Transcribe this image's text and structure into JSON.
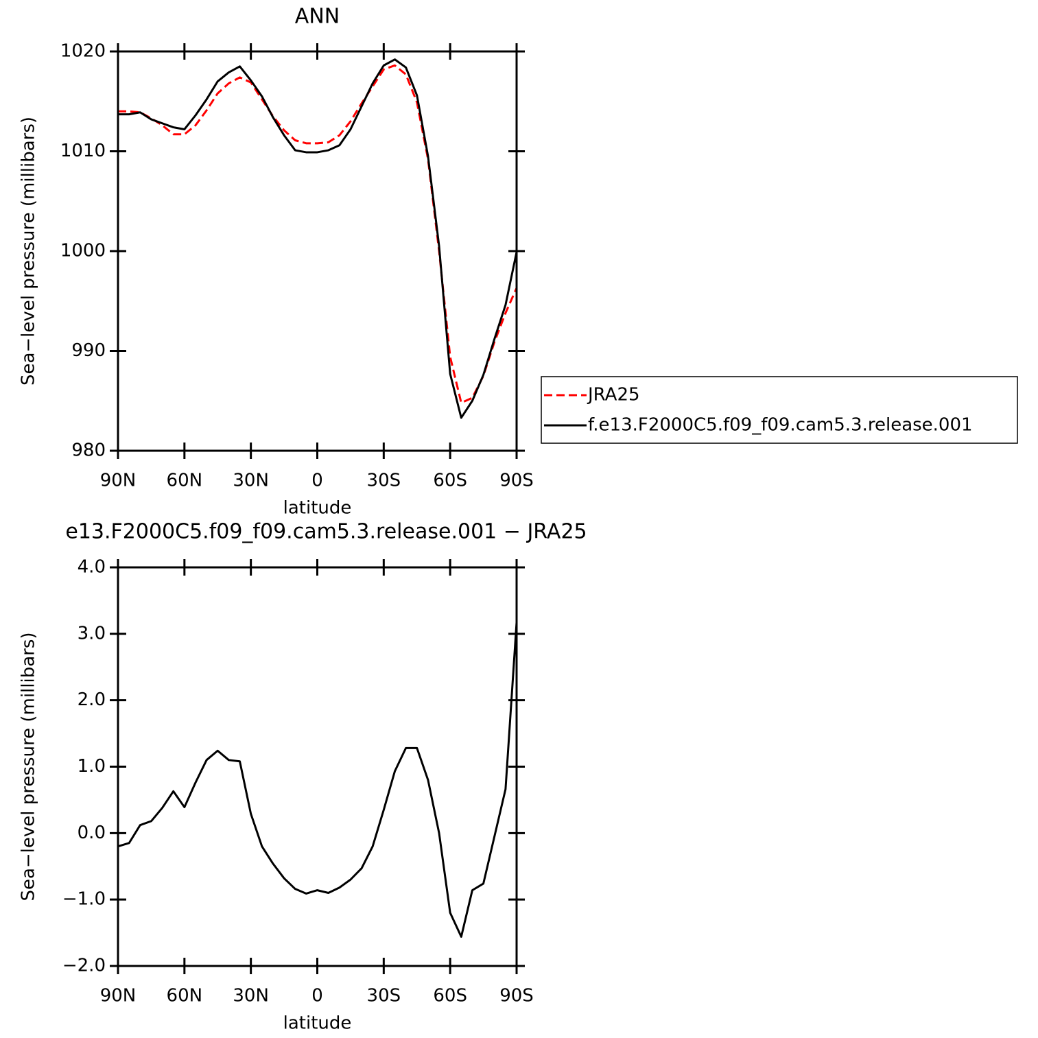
{
  "chart_data": [
    {
      "type": "line",
      "title": "ANN",
      "x_label": "latitude",
      "y_label": "Sea−level pressure (millibars)",
      "x": [
        90,
        85,
        80,
        75,
        70,
        65,
        60,
        55,
        50,
        45,
        40,
        35,
        30,
        25,
        20,
        15,
        10,
        5,
        0,
        -5,
        -10,
        -15,
        -20,
        -25,
        -30,
        -35,
        -40,
        -45,
        -50,
        -55,
        -60,
        -65,
        -70,
        -75,
        -80,
        -85,
        -90
      ],
      "xlim": [
        90,
        -90
      ],
      "xticks": [
        {
          "value": 90,
          "label": "90N"
        },
        {
          "value": 60,
          "label": "60N"
        },
        {
          "value": 30,
          "label": "30N"
        },
        0,
        {
          "value": -30,
          "label": "30S"
        },
        {
          "value": -60,
          "label": "60S"
        },
        {
          "value": -90,
          "label": "90S"
        }
      ],
      "ylim": [
        980,
        1020
      ],
      "yticks": [
        980,
        990,
        1000,
        1010,
        1020
      ],
      "legend": "right",
      "series": [
        {
          "name": "JRA25",
          "color": "#ff0000",
          "dash": "dashed",
          "values": [
            1014.0,
            1014.0,
            1013.9,
            1013.3,
            1012.6,
            1011.7,
            1011.7,
            1012.6,
            1014.1,
            1015.8,
            1016.8,
            1017.4,
            1016.9,
            1015.2,
            1013.5,
            1012.1,
            1011.1,
            1010.8,
            1010.8,
            1010.9,
            1011.6,
            1013.0,
            1014.8,
            1016.5,
            1018.2,
            1018.6,
            1017.7,
            1014.9,
            1009.2,
            1000.0,
            989.4,
            984.8,
            985.3,
            987.5,
            990.9,
            993.8,
            996.3
          ]
        },
        {
          "name": "f.e13.F2000C5.f09_f09.cam5.3.release.001",
          "color": "#000000",
          "dash": "solid",
          "values": [
            1013.7,
            1013.7,
            1013.9,
            1013.2,
            1012.8,
            1012.4,
            1012.2,
            1013.6,
            1015.2,
            1017.0,
            1017.9,
            1018.5,
            1017.1,
            1015.5,
            1013.4,
            1011.6,
            1010.1,
            1009.9,
            1009.9,
            1010.1,
            1010.6,
            1012.2,
            1014.5,
            1016.8,
            1018.6,
            1019.2,
            1018.4,
            1015.6,
            1009.5,
            1000.5,
            987.7,
            983.3,
            985.0,
            987.6,
            991.2,
            994.6,
            999.9
          ]
        }
      ]
    },
    {
      "type": "line",
      "title": "e13.F2000C5.f09_f09.cam5.3.release.001 − JRA25",
      "x_label": "latitude",
      "y_label": "Sea−level pressure (millibars)",
      "x": [
        90,
        85,
        80,
        75,
        70,
        65,
        60,
        55,
        50,
        45,
        40,
        35,
        30,
        25,
        20,
        15,
        10,
        5,
        0,
        -5,
        -10,
        -15,
        -20,
        -25,
        -30,
        -35,
        -40,
        -45,
        -50,
        -55,
        -60,
        -65,
        -70,
        -75,
        -80,
        -85,
        -90
      ],
      "xlim": [
        90,
        -90
      ],
      "xticks": [
        {
          "value": 90,
          "label": "90N"
        },
        {
          "value": 60,
          "label": "60N"
        },
        {
          "value": 30,
          "label": "30N"
        },
        0,
        {
          "value": -30,
          "label": "30S"
        },
        {
          "value": -60,
          "label": "60S"
        },
        {
          "value": -90,
          "label": "90S"
        }
      ],
      "ylim": [
        -2,
        4
      ],
      "yticks": [
        {
          "value": -2,
          "label": "−2.0"
        },
        {
          "value": -1,
          "label": "−1.0"
        },
        {
          "value": 0,
          "label": "0.0"
        },
        {
          "value": 1,
          "label": "1.0"
        },
        {
          "value": 2,
          "label": "2.0"
        },
        {
          "value": 3,
          "label": "3.0"
        },
        {
          "value": 4,
          "label": "4.0"
        }
      ],
      "series": [
        {
          "color": "#000000",
          "dash": "solid",
          "values": [
            -0.2,
            -0.15,
            0.12,
            0.18,
            0.38,
            0.63,
            0.39,
            0.76,
            1.1,
            1.24,
            1.1,
            1.08,
            0.29,
            -0.2,
            -0.46,
            -0.68,
            -0.84,
            -0.91,
            -0.86,
            -0.9,
            -0.82,
            -0.7,
            -0.53,
            -0.2,
            0.35,
            0.93,
            1.28,
            1.28,
            0.8,
            0.0,
            -1.2,
            -1.56,
            -0.86,
            -0.76,
            -0.05,
            0.66,
            3.17
          ]
        }
      ]
    }
  ]
}
